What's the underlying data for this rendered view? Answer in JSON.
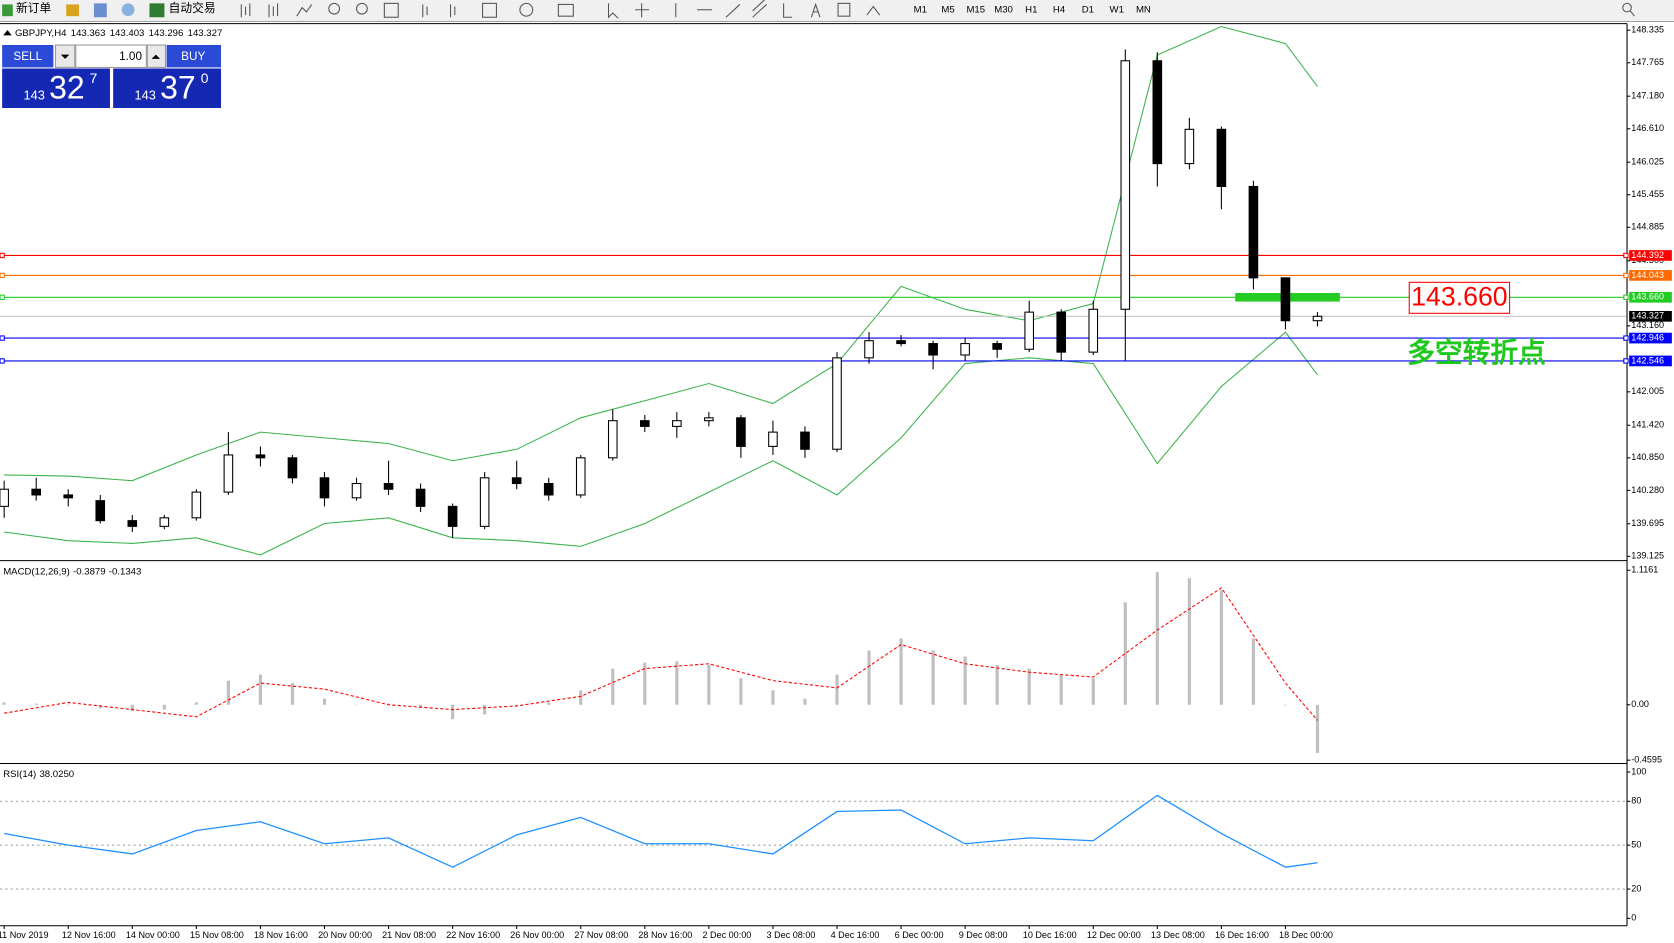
{
  "toolbar": {
    "new_order": "新订单",
    "auto_trading": "自动交易",
    "timeframes": [
      "M1",
      "M5",
      "M15",
      "M30",
      "H1",
      "H4",
      "D1",
      "W1",
      "MN"
    ]
  },
  "trade_panel": {
    "sell": "SELL",
    "buy": "BUY",
    "lots": "1.00",
    "sell_price": {
      "big": "143",
      "pips": "32",
      "fraction": "7"
    },
    "buy_price": {
      "big": "143",
      "pips": "37",
      "fraction": "0"
    }
  },
  "chart_data": [
    {
      "type": "candlestick",
      "title": "GBPJPY,H4",
      "readout": [
        143.363,
        143.403,
        143.296,
        143.327
      ],
      "up_color": "#ffffff",
      "down_color": "#000000",
      "open": [
        140.0,
        140.3,
        140.2,
        140.1,
        139.75,
        139.65,
        139.8,
        140.25,
        140.9,
        140.85,
        140.5,
        140.15,
        140.4,
        140.3,
        140.0,
        139.65,
        140.5,
        140.4,
        140.2,
        140.85,
        141.5,
        141.4,
        141.5,
        141.55,
        141.05,
        141.3,
        141.0,
        142.6,
        142.9,
        142.85,
        142.65,
        142.85,
        142.75,
        143.4,
        142.7,
        143.45,
        147.8,
        146.0,
        146.6,
        145.6,
        144.0,
        143.25
      ],
      "high": [
        140.45,
        140.5,
        140.3,
        140.2,
        139.85,
        139.85,
        140.3,
        141.3,
        141.05,
        140.9,
        140.6,
        140.5,
        140.8,
        140.4,
        140.05,
        140.6,
        140.8,
        140.5,
        140.9,
        141.7,
        141.6,
        141.65,
        141.65,
        141.6,
        141.5,
        141.4,
        142.7,
        143.05,
        143.0,
        142.9,
        142.95,
        142.9,
        143.6,
        143.45,
        143.6,
        148.0,
        147.95,
        146.8,
        146.65,
        145.7,
        144.0,
        143.4
      ],
      "low": [
        139.8,
        140.1,
        140.0,
        139.7,
        139.55,
        139.6,
        139.75,
        140.2,
        140.7,
        140.4,
        140.0,
        140.1,
        140.2,
        139.9,
        139.45,
        139.6,
        140.3,
        140.1,
        140.15,
        140.8,
        141.3,
        141.2,
        141.4,
        140.85,
        140.9,
        140.85,
        140.95,
        142.5,
        142.8,
        142.4,
        142.55,
        142.6,
        142.7,
        142.55,
        142.65,
        142.55,
        145.6,
        145.9,
        145.2,
        143.8,
        143.1,
        143.15
      ],
      "close": [
        140.3,
        140.2,
        140.15,
        139.75,
        139.65,
        139.8,
        140.25,
        140.9,
        140.85,
        140.5,
        140.15,
        140.4,
        140.3,
        140.0,
        139.65,
        140.5,
        140.4,
        140.2,
        140.85,
        141.5,
        141.4,
        141.5,
        141.55,
        141.05,
        141.3,
        141.0,
        142.6,
        142.9,
        142.85,
        142.65,
        142.85,
        142.75,
        143.4,
        142.7,
        143.45,
        147.8,
        146.0,
        146.6,
        145.6,
        144.0,
        143.25,
        143.327
      ],
      "xlim": [
        -0.13,
        50.63
      ],
      "xticks": [
        {
          "value": 0,
          "label": "11 Nov 2019"
        },
        {
          "value": 2,
          "label": "12 Nov 16:00"
        },
        {
          "value": 4,
          "label": "14 Nov 00:00"
        },
        {
          "value": 6,
          "label": "15 Nov 08:00"
        },
        {
          "value": 8,
          "label": "18 Nov 16:00"
        },
        {
          "value": 10,
          "label": "20 Nov 00:00"
        },
        {
          "value": 12,
          "label": "21 Nov 08:00"
        },
        {
          "value": 14,
          "label": "22 Nov 16:00"
        },
        {
          "value": 16,
          "label": "26 Nov 00:00"
        },
        {
          "value": 18,
          "label": "27 Nov 08:00"
        },
        {
          "value": 20,
          "label": "28 Nov 16:00"
        },
        {
          "value": 22,
          "label": "2 Dec 00:00"
        },
        {
          "value": 24,
          "label": "3 Dec 08:00"
        },
        {
          "value": 26,
          "label": "4 Dec 16:00"
        },
        {
          "value": 28,
          "label": "6 Dec 00:00"
        },
        {
          "value": 30,
          "label": "9 Dec 08:00"
        },
        {
          "value": 32,
          "label": "10 Dec 16:00"
        },
        {
          "value": 34,
          "label": "12 Dec 00:00"
        },
        {
          "value": 36,
          "label": "13 Dec 08:00"
        },
        {
          "value": 38,
          "label": "16 Dec 16:00"
        },
        {
          "value": 40,
          "label": "18 Dec 00:00"
        }
      ],
      "ylim": [
        139.05,
        148.45
      ],
      "yticks": [
        148.335,
        147.765,
        {
          "value": 147.18,
          "label": "147.180"
        },
        {
          "value": 146.61,
          "label": "146.610"
        },
        146.025,
        145.455,
        144.885,
        {
          "value": 144.3,
          "label": "144.300"
        },
        {
          "value": 143.16,
          "label": "143.160"
        },
        142.005,
        {
          "value": 141.42,
          "label": "141.420"
        },
        {
          "value": 140.85,
          "label": "140.850"
        },
        {
          "value": 140.28,
          "label": "140.280"
        },
        139.695,
        139.125
      ],
      "bands": {
        "color": "#3cb44b",
        "x": [
          0,
          2,
          4,
          6,
          8,
          10,
          12,
          14,
          16,
          18,
          20,
          22,
          24,
          26,
          28,
          30,
          32,
          34,
          36,
          38,
          40,
          41
        ],
        "upper": [
          140.55,
          140.53,
          140.45,
          140.9,
          141.3,
          141.2,
          141.1,
          140.8,
          141.0,
          141.55,
          141.85,
          142.15,
          141.8,
          142.5,
          143.85,
          143.45,
          143.25,
          143.55,
          147.9,
          148.4,
          148.1,
          147.35
        ],
        "lower": [
          139.55,
          139.4,
          139.35,
          139.45,
          139.15,
          139.7,
          139.8,
          139.45,
          139.4,
          139.3,
          139.7,
          140.25,
          140.8,
          140.2,
          141.2,
          142.5,
          142.6,
          142.5,
          140.75,
          142.1,
          143.05,
          142.3
        ]
      },
      "levels": [
        {
          "price": 144.392,
          "color": "#ff0000"
        },
        {
          "price": 144.043,
          "color": "#ff6a00"
        },
        {
          "price": {
            "value": 143.66,
            "label": "143.660"
          },
          "color": "#22cc22",
          "marker": true
        },
        {
          "price": 142.946,
          "color": "#0000ff"
        },
        {
          "price": 142.546,
          "color": "#0000ff"
        }
      ],
      "bid": {
        "price": 143.327,
        "color": "#000000"
      },
      "annotations": [
        {
          "text": "143.660",
          "color": "#ff0000"
        },
        {
          "text": "多空转折点",
          "color": "#1ec81e"
        }
      ]
    },
    {
      "type": "macd",
      "title": "MACD(12,26,9)",
      "readout": [
        -0.3879,
        -0.1343
      ],
      "color": "#c0c0c0",
      "values": [
        0.02,
        0.01,
        0.0,
        -0.03,
        -0.05,
        -0.04,
        0.02,
        0.2,
        0.25,
        0.18,
        0.05,
        0.0,
        0.01,
        -0.02,
        -0.12,
        -0.08,
        0.0,
        0.02,
        0.12,
        0.3,
        0.35,
        0.36,
        0.33,
        0.22,
        0.12,
        0.05,
        0.25,
        0.45,
        0.55,
        0.45,
        0.4,
        0.33,
        0.3,
        0.25,
        0.22,
        0.85,
        1.1,
        1.05,
        0.95,
        0.55,
        0.0,
        -0.4
      ],
      "signal": {
        "color": "#ff0000",
        "x": [
          0,
          2,
          4,
          6,
          8,
          10,
          12,
          14,
          16,
          18,
          20,
          22,
          24,
          26,
          28,
          30,
          32,
          34,
          36,
          38,
          40,
          41
        ],
        "values": [
          -0.07,
          0.02,
          -0.04,
          -0.1,
          0.18,
          0.13,
          0.0,
          -0.04,
          -0.01,
          0.07,
          0.3,
          0.34,
          0.2,
          0.14,
          0.5,
          0.34,
          0.27,
          0.23,
          0.62,
          0.97,
          0.18,
          -0.13
        ]
      },
      "xlim": [
        -0.13,
        50.63
      ],
      "ylim": [
        -0.487,
        1.178
      ],
      "yticks": [
        1.1161,
        {
          "value": 0,
          "label": "0.00"
        },
        -0.4595
      ]
    },
    {
      "type": "line",
      "title": "RSI(14)",
      "readout": [
        {
          "value": 38.025,
          "label": "38.0250"
        }
      ],
      "color": "#1e90ff",
      "x": [
        0,
        2,
        4,
        6,
        8,
        10,
        12,
        14,
        16,
        18,
        20,
        22,
        24,
        26,
        28,
        30,
        32,
        34,
        36,
        38,
        40,
        41
      ],
      "values": [
        58,
        50,
        44,
        60,
        66,
        51,
        55,
        35,
        57,
        69,
        51,
        51,
        44,
        73,
        74,
        51,
        55,
        53,
        84,
        58,
        35,
        38
      ],
      "xlim": [
        -0.13,
        50.63
      ],
      "ylim": [
        -5.1,
        104.4
      ],
      "yticks": [
        100,
        80,
        50,
        20,
        0
      ]
    }
  ]
}
